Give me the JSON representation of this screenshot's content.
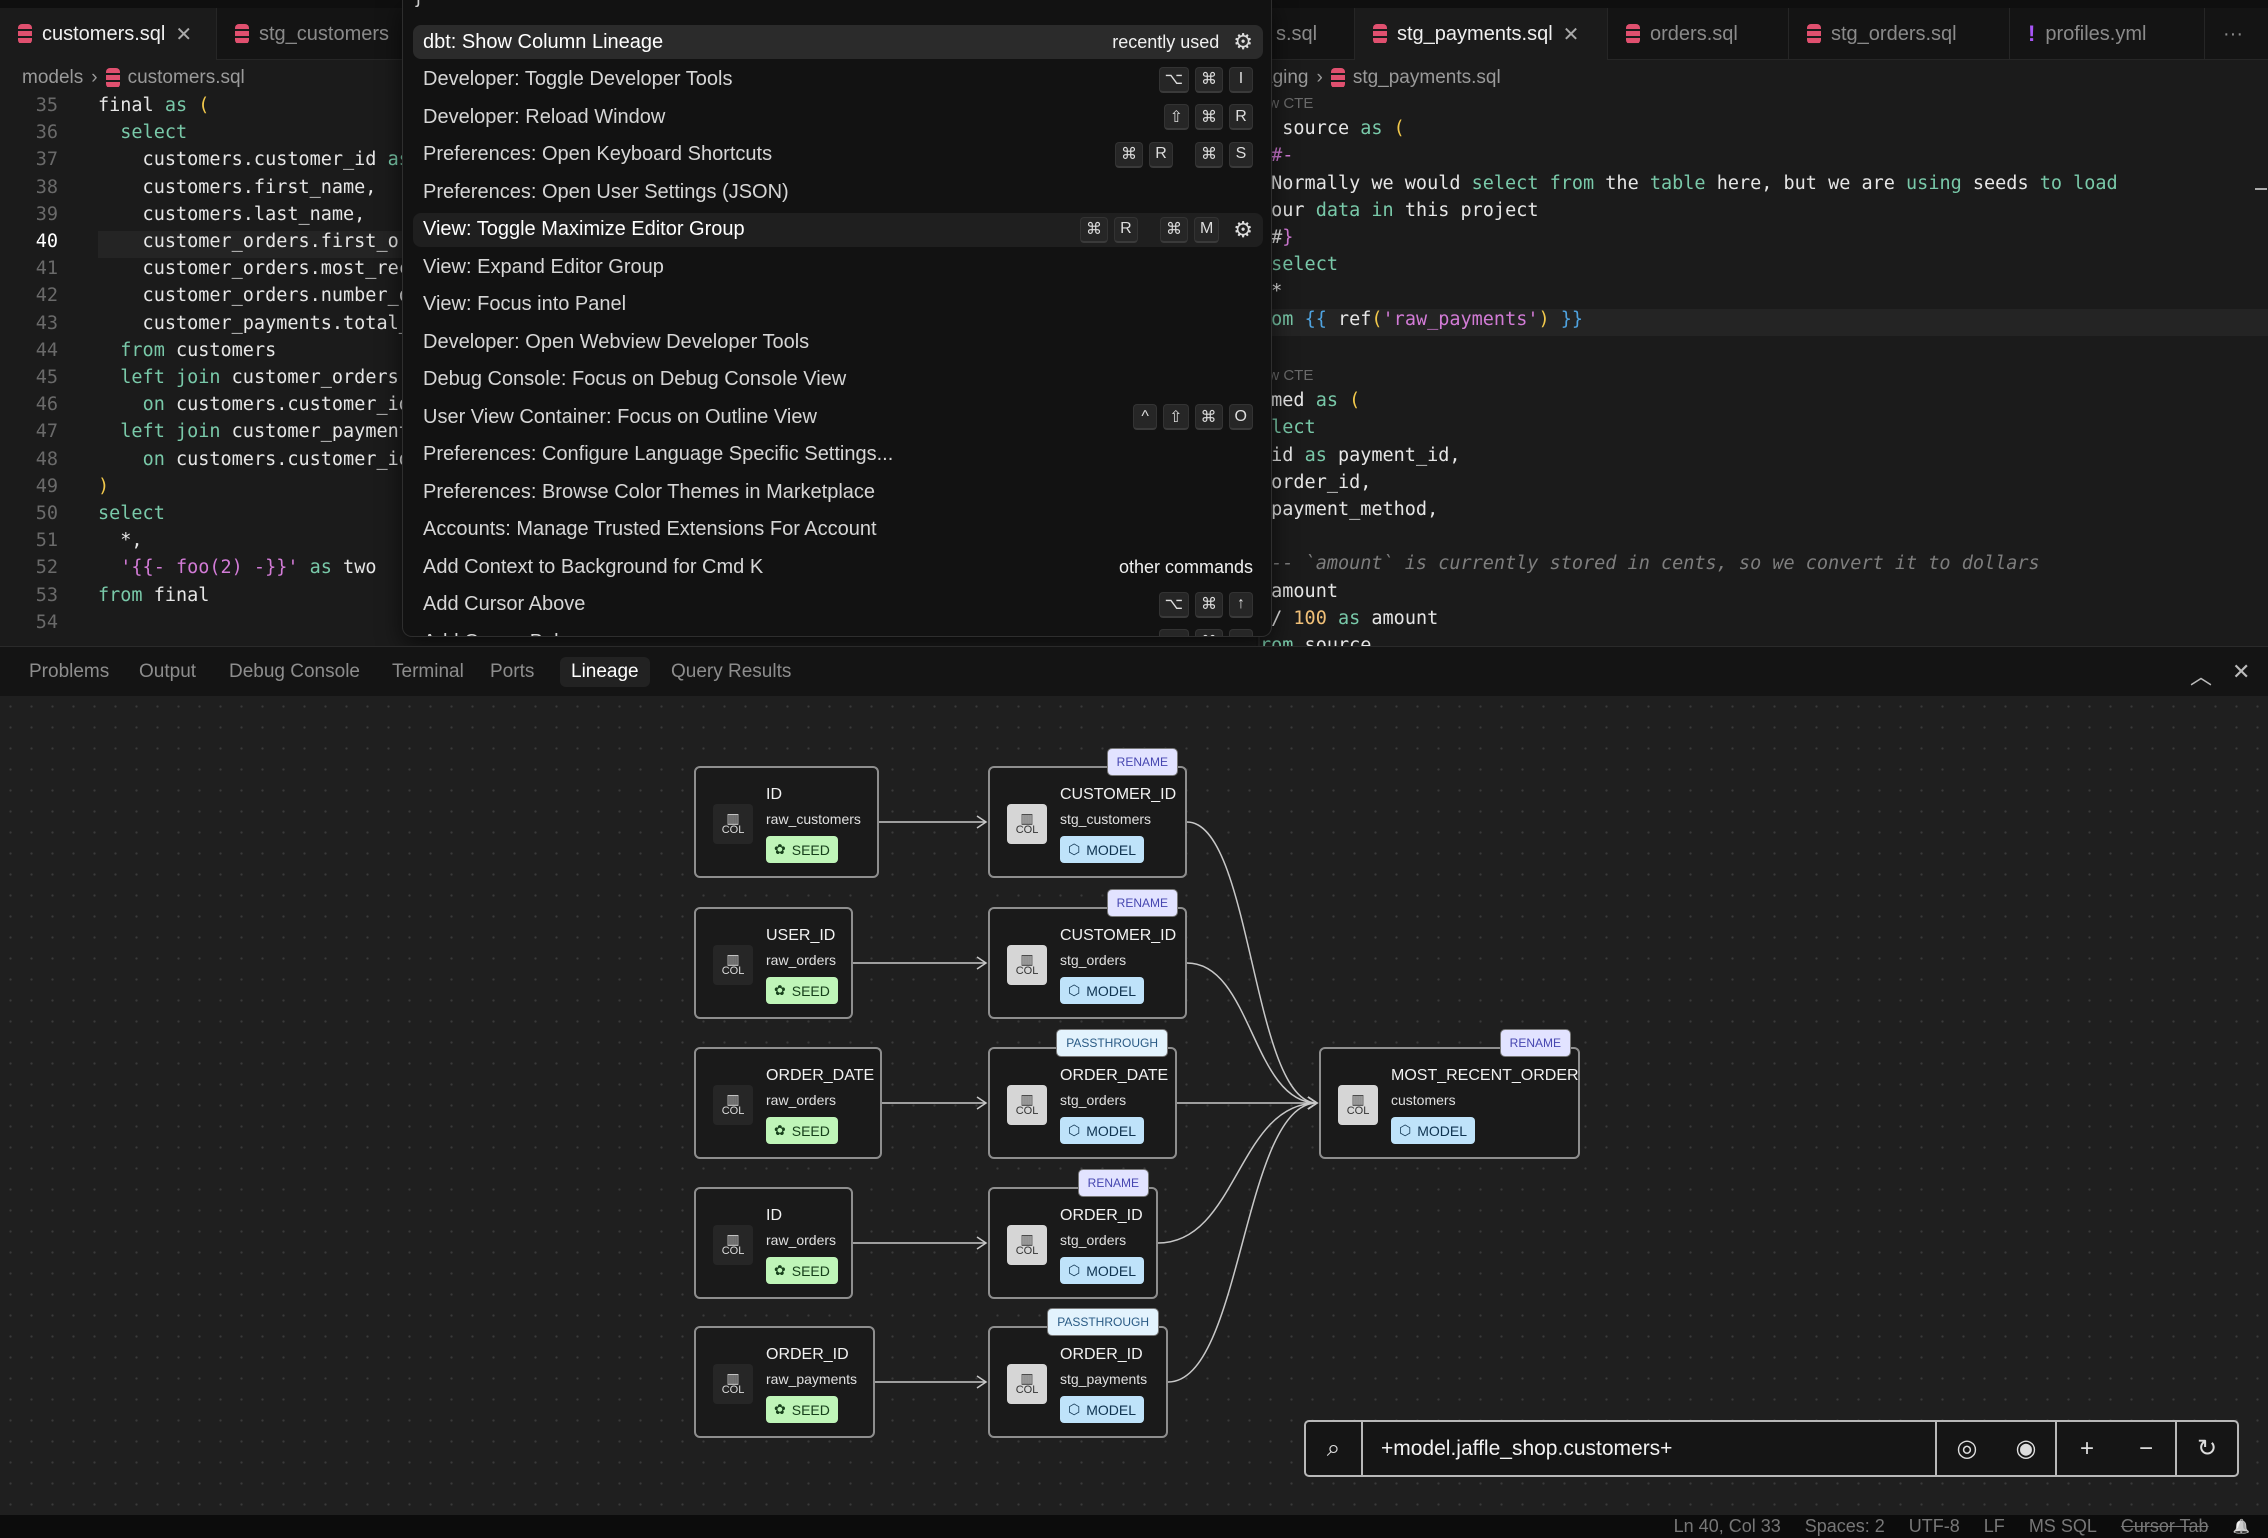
{
  "tabs_left": [
    {
      "label": "customers.sql",
      "icon": "database-icon",
      "active": true,
      "closable": true
    },
    {
      "label": "stg_customers",
      "icon": "database-icon",
      "active": false
    }
  ],
  "tabs_right": [
    {
      "label": "s.sql",
      "icon": "",
      "active": false
    },
    {
      "label": "stg_payments.sql",
      "icon": "database-icon",
      "active": true,
      "closable": true
    },
    {
      "label": "orders.sql",
      "icon": "database-icon",
      "active": false
    },
    {
      "label": "stg_orders.sql",
      "icon": "database-icon",
      "active": false
    },
    {
      "label": "profiles.yml",
      "icon": "yaml-exclamation-icon",
      "active": false
    }
  ],
  "more_tabs_label": "···",
  "close_glyph": "✕",
  "left_editor": {
    "breadcrumb": [
      "models",
      "customers.sql"
    ],
    "current_line": 40,
    "lines": [
      {
        "n": 35,
        "tokens": [
          [
            "final ",
            ""
          ],
          [
            "as",
            "kw"
          ],
          [
            " ",
            ""
          ],
          [
            "(",
            "par"
          ]
        ]
      },
      {
        "n": 36,
        "tokens": [
          [
            "  ",
            ""
          ],
          [
            "select",
            "kw"
          ]
        ]
      },
      {
        "n": 37,
        "tokens": [
          [
            "    customers.customer_id ",
            ""
          ],
          [
            "as",
            "kw"
          ]
        ]
      },
      {
        "n": 38,
        "tokens": [
          [
            "    customers.first_name,",
            ""
          ]
        ]
      },
      {
        "n": 39,
        "tokens": [
          [
            "    customers.last_name,",
            ""
          ]
        ]
      },
      {
        "n": 40,
        "tokens": [
          [
            "    customer_orders.first_or",
            ""
          ]
        ]
      },
      {
        "n": 41,
        "tokens": [
          [
            "    customer_orders.most_rec",
            ""
          ]
        ]
      },
      {
        "n": 42,
        "tokens": [
          [
            "    customer_orders.number_o",
            ""
          ]
        ]
      },
      {
        "n": 43,
        "tokens": [
          [
            "    customer_payments.total_",
            ""
          ]
        ]
      },
      {
        "n": 44,
        "tokens": [
          [
            "  ",
            ""
          ],
          [
            "from",
            "kw"
          ],
          [
            " customers",
            ""
          ]
        ]
      },
      {
        "n": 45,
        "tokens": [
          [
            "  ",
            ""
          ],
          [
            "left join",
            "kw"
          ],
          [
            " customer_orders",
            ""
          ]
        ]
      },
      {
        "n": 46,
        "tokens": [
          [
            "    ",
            ""
          ],
          [
            "on",
            "kw"
          ],
          [
            " customers.customer_id",
            ""
          ]
        ]
      },
      {
        "n": 47,
        "tokens": [
          [
            "  ",
            ""
          ],
          [
            "left join",
            "kw"
          ],
          [
            " customer_payment",
            ""
          ]
        ]
      },
      {
        "n": 48,
        "tokens": [
          [
            "    ",
            ""
          ],
          [
            "on",
            "kw"
          ],
          [
            " customers.customer_id",
            ""
          ]
        ]
      },
      {
        "n": 49,
        "tokens": [
          [
            ")",
            "par"
          ]
        ]
      },
      {
        "n": 50,
        "tokens": [
          [
            "select",
            "kw"
          ]
        ]
      },
      {
        "n": 51,
        "tokens": [
          [
            "  *,",
            ""
          ]
        ]
      },
      {
        "n": 52,
        "tokens": [
          [
            "  ",
            ""
          ],
          [
            "'{{- foo(2) -}}'",
            "str"
          ],
          [
            " ",
            ""
          ],
          [
            "as",
            "kw"
          ],
          [
            " two",
            ""
          ]
        ]
      },
      {
        "n": 53,
        "tokens": [
          [
            "from",
            "kw"
          ],
          [
            " final",
            ""
          ]
        ]
      },
      {
        "n": 54,
        "tokens": []
      }
    ]
  },
  "right_editor": {
    "breadcrumb": [
      "aging",
      "stg_payments.sql"
    ],
    "lines": [
      {
        "lens": "ew CTE"
      },
      {
        "tokens": [
          [
            "n source ",
            ""
          ],
          [
            "as",
            "kw"
          ],
          [
            " ",
            ""
          ],
          [
            "(",
            "par"
          ]
        ]
      },
      {
        "tokens": [
          [
            "{#-",
            "jj"
          ]
        ]
      },
      {
        "tokens": [
          [
            " Normally we would ",
            ""
          ],
          [
            "select",
            "kw"
          ],
          [
            " ",
            ""
          ],
          [
            "from",
            "kw"
          ],
          [
            " the ",
            ""
          ],
          [
            "table",
            "kw"
          ],
          [
            " here, but we are ",
            ""
          ],
          [
            "using",
            "kw"
          ],
          [
            " seeds ",
            ""
          ],
          [
            "to",
            "kw"
          ],
          [
            " ",
            ""
          ],
          [
            "load",
            "kw"
          ]
        ]
      },
      {
        "tokens": [
          [
            " our ",
            ""
          ],
          [
            "data",
            "kw"
          ],
          [
            " ",
            ""
          ],
          [
            "in",
            "kw"
          ],
          [
            " this project",
            ""
          ]
        ]
      },
      {
        "tokens": [
          [
            " #",
            ""
          ],
          [
            "}",
            "jj"
          ]
        ]
      },
      {
        "tokens": [
          [
            " ",
            ""
          ],
          [
            "select",
            "kw"
          ]
        ]
      },
      {
        "tokens": [
          [
            " *",
            ""
          ]
        ]
      },
      {
        "tokens": [
          [
            "rom ",
            "kw"
          ],
          [
            "{{",
            "br"
          ],
          [
            " ref",
            ""
          ],
          [
            "(",
            "par"
          ],
          [
            "'raw_payments'",
            "str"
          ],
          [
            ")",
            "par"
          ],
          [
            " ",
            ""
          ],
          [
            "}}",
            "br"
          ]
        ],
        "current": true
      },
      {
        "tokens": []
      },
      {
        "lens": "ew CTE"
      },
      {
        "tokens": [
          [
            "amed ",
            ""
          ],
          [
            "as",
            "kw"
          ],
          [
            " ",
            ""
          ],
          [
            "(",
            "par"
          ]
        ]
      },
      {
        "tokens": [
          [
            "elect",
            "kw"
          ]
        ]
      },
      {
        "tokens": [
          [
            " id ",
            ""
          ],
          [
            "as",
            "kw"
          ],
          [
            " payment_id,",
            ""
          ]
        ]
      },
      {
        "tokens": [
          [
            " order_id,",
            ""
          ]
        ]
      },
      {
        "tokens": [
          [
            " payment_method,",
            ""
          ]
        ]
      },
      {
        "tokens": []
      },
      {
        "tokens": [
          [
            " -- `amount` is currently stored in cents, so we convert it to dollars",
            "cm"
          ]
        ]
      },
      {
        "tokens": [
          [
            " amount",
            ""
          ]
        ]
      },
      {
        "tokens": [
          [
            " / ",
            ""
          ],
          [
            "100",
            "num"
          ],
          [
            " ",
            ""
          ],
          [
            "as",
            "kw"
          ],
          [
            " amount",
            ""
          ]
        ]
      },
      {
        "tokens": [
          [
            "rom",
            "kw"
          ],
          [
            " source",
            ""
          ]
        ]
      }
    ]
  },
  "command_palette": {
    "items": [
      {
        "label": "dbt: Show Column Lineage",
        "right_text": "recently used",
        "gear": true,
        "keys": [],
        "selected": true
      },
      {
        "label": "Developer: Toggle Developer Tools",
        "keys": [
          [
            "⌥",
            "⌘",
            "I"
          ]
        ]
      },
      {
        "label": "Developer: Reload Window",
        "keys": [
          [
            "⇧",
            "⌘",
            "R"
          ]
        ]
      },
      {
        "label": "Preferences: Open Keyboard Shortcuts",
        "keys": [
          [
            "⌘",
            "R"
          ],
          [
            "⌘",
            "S"
          ]
        ]
      },
      {
        "label": "Preferences: Open User Settings (JSON)",
        "keys": []
      },
      {
        "label": "View: Toggle Maximize Editor Group",
        "keys": [
          [
            "⌘",
            "R"
          ],
          [
            "⌘",
            "M"
          ]
        ],
        "gear": true,
        "hover": true
      },
      {
        "label": "View: Expand Editor Group",
        "keys": []
      },
      {
        "label": "View: Focus into Panel",
        "keys": []
      },
      {
        "label": "Developer: Open Webview Developer Tools",
        "keys": []
      },
      {
        "label": "Debug Console: Focus on Debug Console View",
        "keys": []
      },
      {
        "label": "User View Container: Focus on Outline View",
        "keys": [
          [
            "^",
            "⇧",
            "⌘",
            "O"
          ]
        ]
      },
      {
        "label": "Preferences: Configure Language Specific Settings...",
        "keys": []
      },
      {
        "label": "Preferences: Browse Color Themes in Marketplace",
        "keys": []
      },
      {
        "label": "Accounts: Manage Trusted Extensions For Account",
        "keys": []
      },
      {
        "label": "Add Context to Background for Cmd K",
        "right_text": "other commands",
        "keys": []
      },
      {
        "label": "Add Cursor Above",
        "keys": [
          [
            "⌥",
            "⌘",
            "↑"
          ]
        ]
      },
      {
        "label": "Add Cursor Below",
        "keys": [
          [
            "⌥",
            "⌘",
            "↓"
          ]
        ]
      }
    ]
  },
  "panel": {
    "tabs": [
      "Problems",
      "Output",
      "Debug Console",
      "Terminal",
      "Ports",
      "Lineage",
      "Query Results"
    ],
    "active_tab": "Lineage",
    "maximize_glyph": "︿",
    "close_glyph": "✕"
  },
  "lineage": {
    "col_label": "COL",
    "col_glyph": "▥",
    "seed_glyph": "✿",
    "model_glyph": "⬡",
    "nodes": [
      {
        "id": "a1",
        "name": "ID",
        "table": "raw_customers",
        "type": "SEED"
      },
      {
        "id": "a2",
        "name": "USER_ID",
        "table": "raw_orders",
        "type": "SEED"
      },
      {
        "id": "a3",
        "name": "ORDER_DATE",
        "table": "raw_orders",
        "type": "SEED"
      },
      {
        "id": "a4",
        "name": "ID",
        "table": "raw_orders",
        "type": "SEED"
      },
      {
        "id": "a5",
        "name": "ORDER_ID",
        "table": "raw_payments",
        "type": "SEED"
      },
      {
        "id": "b1",
        "name": "CUSTOMER_ID",
        "table": "stg_customers",
        "type": "MODEL",
        "transform": "RENAME"
      },
      {
        "id": "b2",
        "name": "CUSTOMER_ID",
        "table": "stg_orders",
        "type": "MODEL",
        "transform": "RENAME"
      },
      {
        "id": "b3",
        "name": "ORDER_DATE",
        "table": "stg_orders",
        "type": "MODEL",
        "transform": "PASSTHROUGH"
      },
      {
        "id": "b4",
        "name": "ORDER_ID",
        "table": "stg_orders",
        "type": "MODEL",
        "transform": "RENAME"
      },
      {
        "id": "b5",
        "name": "ORDER_ID",
        "table": "stg_payments",
        "type": "MODEL",
        "transform": "PASSTHROUGH"
      },
      {
        "id": "c1",
        "name": "MOST_RECENT_ORDER",
        "table": "customers",
        "type": "MODEL",
        "transform": "RENAME"
      }
    ],
    "edges": [
      [
        "a1",
        "b1"
      ],
      [
        "a2",
        "b2"
      ],
      [
        "a3",
        "b3"
      ],
      [
        "a4",
        "b4"
      ],
      [
        "a5",
        "b5"
      ],
      [
        "b1",
        "c1"
      ],
      [
        "b2",
        "c1"
      ],
      [
        "b3",
        "c1"
      ],
      [
        "b4",
        "c1"
      ],
      [
        "b5",
        "c1"
      ]
    ],
    "search": {
      "value": "+model.jaffle_shop.customers+"
    },
    "toolbar_icons": [
      "aperture-icon",
      "eye-icon",
      "zoom-in-icon",
      "zoom-out-icon",
      "refresh-icon"
    ],
    "toolbar_glyphs": [
      "◎",
      "◉",
      "+",
      "−",
      "↻"
    ]
  },
  "status_bar": {
    "items": [
      "Ln 40, Col 33",
      "Spaces: 2",
      "UTF-8",
      "LF",
      "MS SQL"
    ],
    "cursor_tab": "Cursor Tab",
    "bell_glyph": "🔔"
  },
  "colors": {
    "seed": "#bff5b8",
    "model": "#bfe3fa",
    "rename": "#e2e3ff",
    "passthrough": "#e3f3fd",
    "accent_db": "#e0506f"
  }
}
